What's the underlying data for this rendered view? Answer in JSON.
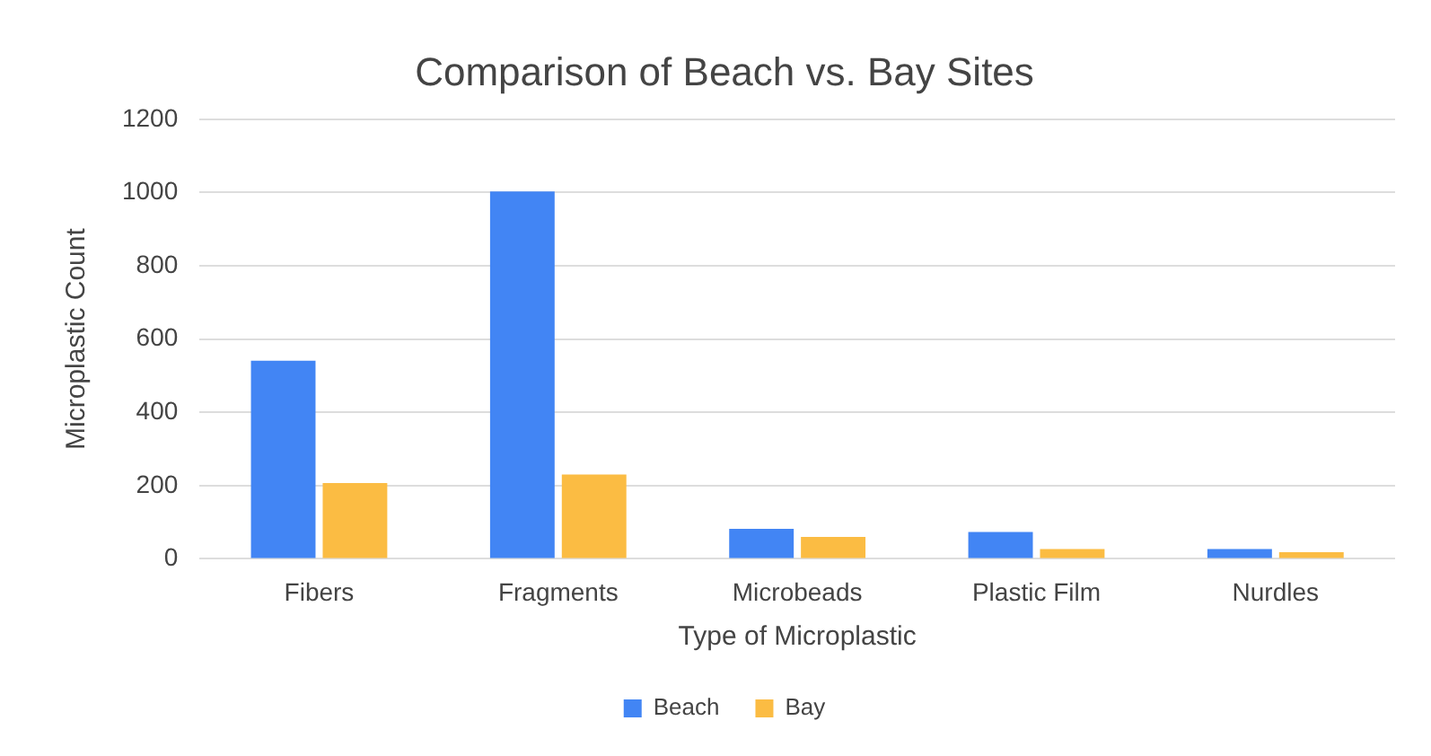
{
  "chart_data": {
    "type": "bar",
    "title": "Comparison of Beach vs. Bay Sites",
    "xlabel": "Type of Microplastic",
    "ylabel": "Microplastic Count",
    "categories": [
      "Fibers",
      "Fragments",
      "Microbeads",
      "Plastic Film",
      "Nurdles"
    ],
    "series": [
      {
        "name": "Beach",
        "color": "#4285f4",
        "values": [
          541,
          1003,
          82,
          73,
          27
        ]
      },
      {
        "name": "Bay",
        "color": "#fbbc43",
        "values": [
          207,
          230,
          60,
          27,
          18
        ]
      }
    ],
    "ylim": [
      0,
      1200
    ],
    "yticks": [
      0,
      200,
      400,
      600,
      800,
      1000,
      1200
    ],
    "grid": "y",
    "legend": "bottom"
  }
}
